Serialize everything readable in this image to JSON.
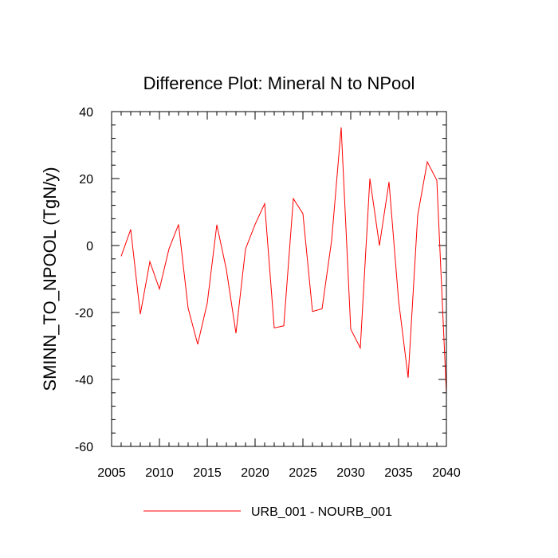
{
  "chart_data": {
    "type": "line",
    "title": "Difference Plot: Mineral N to NPool",
    "xlabel": "",
    "ylabel": "SMINN_TO_NPOOL  (TgN/y)",
    "xlim": [
      2005,
      2040
    ],
    "ylim": [
      -60,
      40
    ],
    "x_ticks": [
      2005,
      2010,
      2015,
      2020,
      2025,
      2030,
      2035,
      2040
    ],
    "y_ticks": [
      -60,
      -40,
      -20,
      0,
      20,
      40
    ],
    "x_tick_labels": [
      "2005",
      "2010",
      "2015",
      "2020",
      "2025",
      "2030",
      "2035",
      "2040"
    ],
    "y_tick_labels": [
      "-60",
      "-40",
      "-20",
      "0",
      "20",
      "40"
    ],
    "grid": false,
    "legend_position": "bottom-center",
    "series": [
      {
        "name": "URB_001 - NOURB_001",
        "color": "#ff0000",
        "x": [
          2006,
          2007,
          2008,
          2009,
          2010,
          2011,
          2012,
          2013,
          2014,
          2015,
          2016,
          2017,
          2018,
          2019,
          2020,
          2021,
          2022,
          2023,
          2024,
          2025,
          2026,
          2027,
          2028,
          2029,
          2030,
          2031,
          2032,
          2033,
          2034,
          2035,
          2036,
          2037,
          2038,
          2039,
          2040
        ],
        "values": [
          -3.2,
          4.8,
          -20.5,
          -4.8,
          -13,
          -1,
          6.3,
          -18.7,
          -29.5,
          -17.2,
          6.2,
          -7.2,
          -26.2,
          -1,
          6.3,
          12.5,
          -24.6,
          -24,
          14,
          9.5,
          -19.7,
          -18.9,
          1.5,
          35.3,
          -25,
          -30.6,
          20,
          0,
          19,
          -16.4,
          -39.5,
          9,
          25,
          19.5,
          -44.2
        ]
      }
    ]
  }
}
